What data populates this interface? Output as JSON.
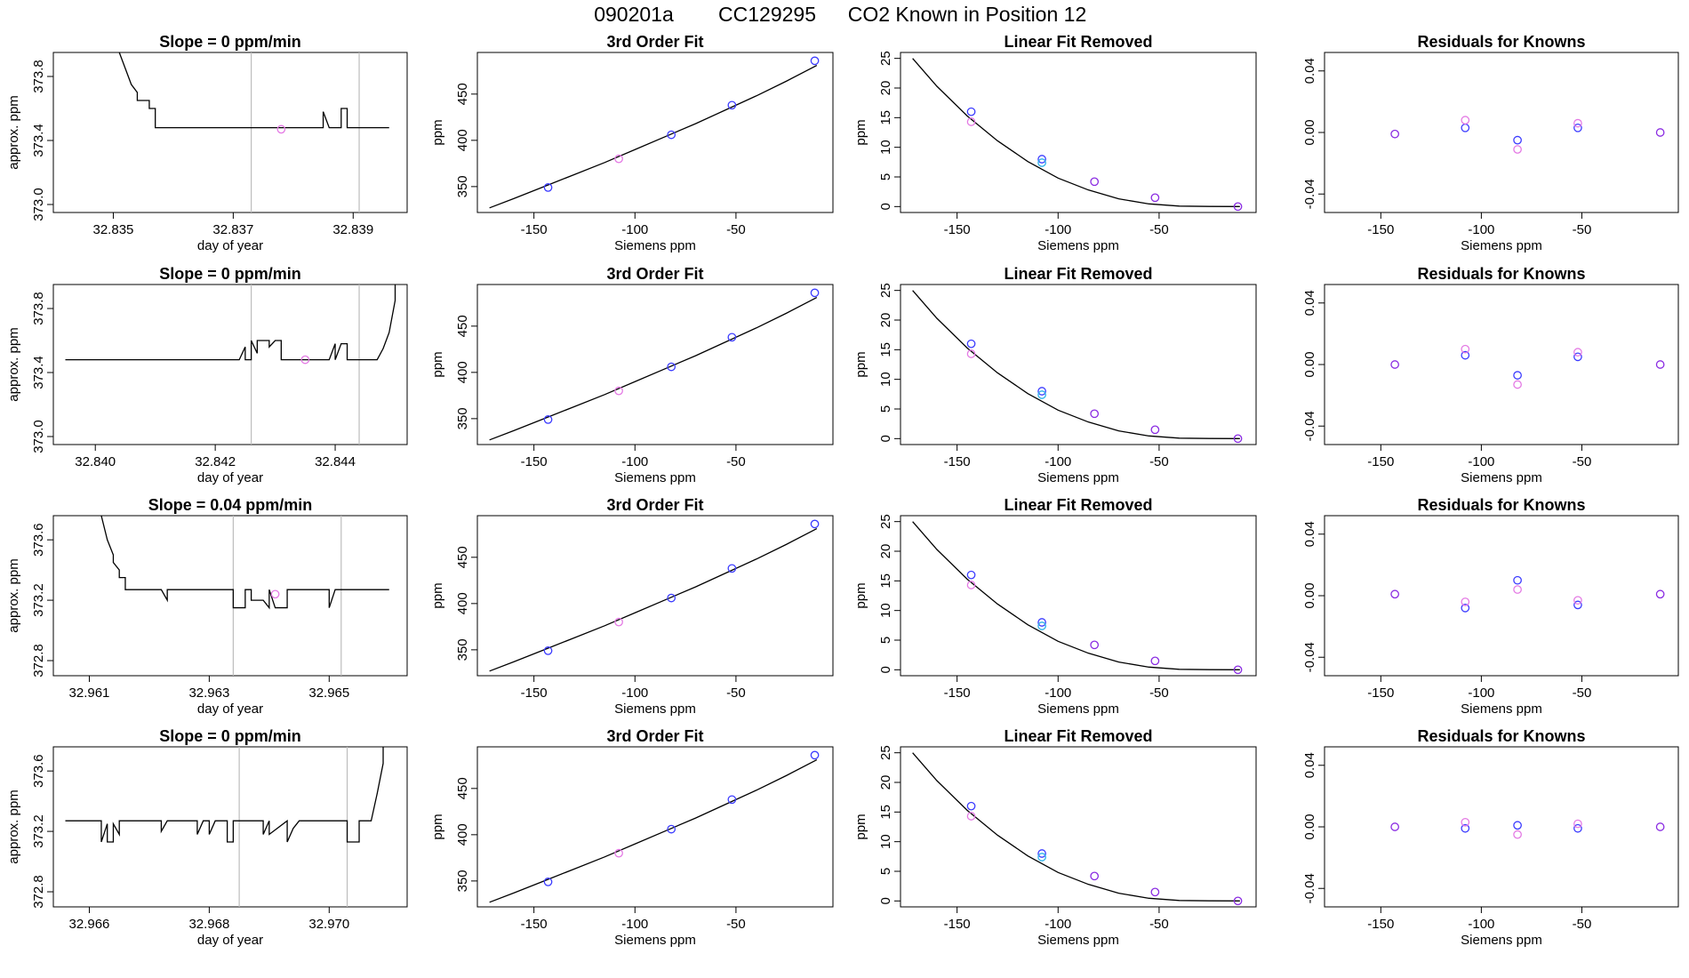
{
  "page": {
    "title_parts": [
      "090201a",
      "CC129295",
      "CO2 Known in Position  12"
    ]
  },
  "colors": {
    "line": "#000000",
    "vline": "#bdbdbd",
    "point_a": "#3b3bff",
    "point_b": "#e47ae4",
    "point_c": "#2ab0e8",
    "point_d": "#8a2be2",
    "frame": "#000000"
  },
  "chart_data": [
    {
      "type": "line",
      "row": 0,
      "col": 0,
      "title": "Slope =  0  ppm/min",
      "xlabel": "day of year",
      "ylabel": "approx. ppm",
      "xlim": [
        32.834,
        32.8399
      ],
      "ylim": [
        372.95,
        373.95
      ],
      "x_ticks": [
        "32.835",
        "32.837",
        "32.839"
      ],
      "x_tick_values": [
        32.835,
        32.837,
        32.839
      ],
      "y_ticks": [
        "373.0",
        "373.4",
        "373.8"
      ],
      "y_tick_values": [
        373.0,
        373.4,
        373.8
      ],
      "vlines": [
        32.8373,
        32.8391
      ],
      "series": [
        {
          "x": [
            32.8351,
            32.8352,
            32.8353,
            32.8354,
            32.8354,
            32.8356,
            32.8356,
            32.8357,
            32.8357,
            32.8358,
            32.8385,
            32.8385,
            32.8386,
            32.8386,
            32.8388,
            32.8388,
            32.8389,
            32.8389,
            32.8396
          ],
          "y": [
            373.95,
            373.85,
            373.75,
            373.7,
            373.65,
            373.65,
            373.6,
            373.6,
            373.48,
            373.48,
            373.48,
            373.58,
            373.48,
            373.48,
            373.48,
            373.6,
            373.6,
            373.48,
            373.48
          ]
        }
      ],
      "point": {
        "x": 32.8378,
        "y": 373.47
      }
    },
    {
      "type": "line",
      "row": 1,
      "col": 0,
      "title": "Slope =  0  ppm/min",
      "xlabel": "day of year",
      "ylabel": "approx. ppm",
      "xlim": [
        32.8393,
        32.8452
      ],
      "ylim": [
        372.95,
        373.95
      ],
      "x_ticks": [
        "32.840",
        "32.842",
        "32.844"
      ],
      "x_tick_values": [
        32.84,
        32.842,
        32.844
      ],
      "y_ticks": [
        "373.0",
        "373.4",
        "373.8"
      ],
      "y_tick_values": [
        373.0,
        373.4,
        373.8
      ],
      "vlines": [
        32.8426,
        32.8444
      ],
      "series": [
        {
          "x": [
            32.8395,
            32.8424,
            32.8425,
            32.8425,
            32.8426,
            32.8426,
            32.8427,
            32.8427,
            32.8428,
            32.8429,
            32.8429,
            32.843,
            32.8431,
            32.8431,
            32.8432,
            32.8434,
            32.8434,
            32.8439,
            32.844,
            32.844,
            32.8441,
            32.8442,
            32.8442,
            32.8442,
            32.8447,
            32.8448,
            32.8449,
            32.845,
            32.845
          ],
          "y": [
            373.48,
            373.48,
            373.56,
            373.48,
            373.48,
            373.6,
            373.52,
            373.6,
            373.6,
            373.6,
            373.56,
            373.6,
            373.6,
            373.48,
            373.48,
            373.48,
            373.48,
            373.48,
            373.58,
            373.48,
            373.58,
            373.58,
            373.48,
            373.48,
            373.48,
            373.55,
            373.65,
            373.85,
            373.95
          ]
        }
      ],
      "point": {
        "x": 32.8435,
        "y": 373.48
      }
    },
    {
      "type": "line",
      "row": 2,
      "col": 0,
      "title": "Slope =  0.04  ppm/min",
      "xlabel": "day of year",
      "ylabel": "approx. ppm",
      "xlim": [
        32.9604,
        32.9663
      ],
      "ylim": [
        372.7,
        373.76
      ],
      "x_ticks": [
        "32.961",
        "32.963",
        "32.965"
      ],
      "x_tick_values": [
        32.961,
        32.963,
        32.965
      ],
      "y_ticks": [
        "372.8",
        "373.2",
        "373.6"
      ],
      "y_tick_values": [
        372.8,
        373.2,
        373.6
      ],
      "vlines": [
        32.9634,
        32.9652
      ],
      "series": [
        {
          "x": [
            32.9612,
            32.9613,
            32.9614,
            32.9614,
            32.9615,
            32.9615,
            32.9616,
            32.9616,
            32.9617,
            32.9622,
            32.9623,
            32.9623,
            32.9634,
            32.9634,
            32.9636,
            32.9636,
            32.9637,
            32.9637,
            32.9639,
            32.964,
            32.964,
            32.9641,
            32.9642,
            32.9643,
            32.9643,
            32.965,
            32.965,
            32.9651,
            32.9651,
            32.966
          ],
          "y": [
            373.76,
            373.6,
            373.5,
            373.45,
            373.4,
            373.35,
            373.35,
            373.27,
            373.27,
            373.27,
            373.2,
            373.27,
            373.27,
            373.15,
            373.15,
            373.27,
            373.27,
            373.2,
            373.2,
            373.15,
            373.27,
            373.15,
            373.15,
            373.15,
            373.27,
            373.27,
            373.15,
            373.27,
            373.27,
            373.27
          ]
        }
      ],
      "point": {
        "x": 32.9641,
        "y": 373.24
      }
    },
    {
      "type": "line",
      "row": 3,
      "col": 0,
      "title": "Slope =  0  ppm/min",
      "xlabel": "day of year",
      "ylabel": "approx. ppm",
      "xlim": [
        32.9654,
        32.9713
      ],
      "ylim": [
        372.7,
        373.76
      ],
      "x_ticks": [
        "32.966",
        "32.968",
        "32.970"
      ],
      "x_tick_values": [
        32.966,
        32.968,
        32.97
      ],
      "y_ticks": [
        "372.8",
        "373.2",
        "373.6"
      ],
      "y_tick_values": [
        372.8,
        373.2,
        373.6
      ],
      "vlines": [
        32.9685,
        32.9703
      ],
      "series": [
        {
          "x": [
            32.9656,
            32.9662,
            32.9662,
            32.9663,
            32.9663,
            32.9664,
            32.9664,
            32.9665,
            32.9665,
            32.9672,
            32.9672,
            32.9673,
            32.9678,
            32.9678,
            32.9679,
            32.968,
            32.968,
            32.9681,
            32.9683,
            32.9683,
            32.9684,
            32.9684,
            32.9689,
            32.9689,
            32.969,
            32.969,
            32.9693,
            32.9693,
            32.9694,
            32.9695,
            32.9703,
            32.9703,
            32.9704,
            32.9705,
            32.9705,
            32.9707,
            32.9708,
            32.9709,
            32.9709
          ],
          "y": [
            373.27,
            373.27,
            373.13,
            373.25,
            373.13,
            373.13,
            373.25,
            373.18,
            373.27,
            373.27,
            373.2,
            373.27,
            373.27,
            373.18,
            373.27,
            373.27,
            373.18,
            373.27,
            373.27,
            373.13,
            373.13,
            373.27,
            373.27,
            373.18,
            373.27,
            373.18,
            373.27,
            373.13,
            373.22,
            373.27,
            373.27,
            373.13,
            373.13,
            373.13,
            373.27,
            373.27,
            373.45,
            373.65,
            373.76
          ]
        }
      ],
      "point": null
    }
  ],
  "fit_panel": {
    "title": "3rd Order Fit",
    "xlabel": "Siemens ppm",
    "ylabel": "ppm",
    "xlim": [
      -178,
      -2
    ],
    "ylim": [
      322,
      495
    ],
    "x_ticks": [
      "-150",
      "-100",
      "-50"
    ],
    "x_tick_values": [
      -150,
      -100,
      -50
    ],
    "y_ticks": [
      "350",
      "400",
      "450"
    ],
    "y_tick_values": [
      350,
      400,
      450
    ],
    "curve": {
      "x": [
        -172,
        -160,
        -145,
        -130,
        -115,
        -100,
        -85,
        -70,
        -55,
        -40,
        -25,
        -10
      ],
      "y": [
        327,
        337,
        350,
        363,
        376,
        390,
        404,
        418,
        433,
        448,
        464,
        481
      ]
    },
    "points": [
      {
        "x": -143,
        "y": 349,
        "c": "a"
      },
      {
        "x": -108,
        "y": 380,
        "c": "b"
      },
      {
        "x": -82,
        "y": 406,
        "c": "a"
      },
      {
        "x": -52,
        "y": 438,
        "c": "a"
      },
      {
        "x": -11,
        "y": 486,
        "c": "a"
      }
    ]
  },
  "linear_panel": {
    "title": "Linear Fit Removed",
    "xlabel": "Siemens ppm",
    "ylabel": "ppm",
    "xlim": [
      -178,
      -2
    ],
    "ylim": [
      -1,
      26
    ],
    "x_ticks": [
      "-150",
      "-100",
      "-50"
    ],
    "x_tick_values": [
      -150,
      -100,
      -50
    ],
    "y_ticks": [
      "0",
      "5",
      "10",
      "15",
      "20",
      "25"
    ],
    "y_tick_values": [
      0,
      5,
      10,
      15,
      20,
      25
    ],
    "curve": {
      "x": [
        -172,
        -160,
        -145,
        -130,
        -115,
        -100,
        -85,
        -70,
        -55,
        -40,
        -25,
        -10
      ],
      "y": [
        25.0,
        20.3,
        15.3,
        11.1,
        7.6,
        4.8,
        2.8,
        1.3,
        0.45,
        0.08,
        0.02,
        0.0
      ]
    },
    "points": [
      {
        "x": -143,
        "y": 16.0,
        "c": "a"
      },
      {
        "x": -143,
        "y": 14.3,
        "c": "b"
      },
      {
        "x": -108,
        "y": 8.0,
        "c": "a"
      },
      {
        "x": -108,
        "y": 7.4,
        "c": "c"
      },
      {
        "x": -82,
        "y": 4.2,
        "c": "d"
      },
      {
        "x": -52,
        "y": 1.5,
        "c": "d"
      },
      {
        "x": -11,
        "y": 0.0,
        "c": "d"
      }
    ]
  },
  "residual_panel": {
    "title": "Residuals for Knowns",
    "xlabel": "Siemens ppm",
    "ylabel": "",
    "xlim": [
      -178,
      -2
    ],
    "ylim": [
      -0.052,
      0.052
    ],
    "x_ticks": [
      "-150",
      "-100",
      "-50"
    ],
    "x_tick_values": [
      -150,
      -100,
      -50
    ],
    "y_ticks": [
      "-0.04",
      "0.00",
      "0.04"
    ],
    "y_tick_values": [
      -0.04,
      0.0,
      0.04
    ],
    "rows": [
      [
        {
          "x": -143,
          "y": -0.001,
          "c": "d"
        },
        {
          "x": -108,
          "y": 0.003,
          "c": "a"
        },
        {
          "x": -108,
          "y": 0.008,
          "c": "b"
        },
        {
          "x": -82,
          "y": -0.005,
          "c": "a"
        },
        {
          "x": -82,
          "y": -0.011,
          "c": "b"
        },
        {
          "x": -52,
          "y": 0.003,
          "c": "a"
        },
        {
          "x": -52,
          "y": 0.006,
          "c": "b"
        },
        {
          "x": -11,
          "y": 0.0,
          "c": "d"
        }
      ],
      [
        {
          "x": -143,
          "y": 0.0,
          "c": "d"
        },
        {
          "x": -108,
          "y": 0.006,
          "c": "a"
        },
        {
          "x": -108,
          "y": 0.01,
          "c": "b"
        },
        {
          "x": -82,
          "y": -0.007,
          "c": "a"
        },
        {
          "x": -82,
          "y": -0.013,
          "c": "b"
        },
        {
          "x": -52,
          "y": 0.005,
          "c": "a"
        },
        {
          "x": -52,
          "y": 0.008,
          "c": "b"
        },
        {
          "x": -11,
          "y": 0.0,
          "c": "d"
        }
      ],
      [
        {
          "x": -143,
          "y": 0.001,
          "c": "d"
        },
        {
          "x": -108,
          "y": -0.008,
          "c": "a"
        },
        {
          "x": -108,
          "y": -0.004,
          "c": "b"
        },
        {
          "x": -82,
          "y": 0.01,
          "c": "a"
        },
        {
          "x": -82,
          "y": 0.004,
          "c": "b"
        },
        {
          "x": -52,
          "y": -0.006,
          "c": "a"
        },
        {
          "x": -52,
          "y": -0.003,
          "c": "b"
        },
        {
          "x": -11,
          "y": 0.001,
          "c": "d"
        }
      ],
      [
        {
          "x": -143,
          "y": 0.0,
          "c": "d"
        },
        {
          "x": -108,
          "y": -0.001,
          "c": "a"
        },
        {
          "x": -108,
          "y": 0.003,
          "c": "b"
        },
        {
          "x": -82,
          "y": 0.001,
          "c": "a"
        },
        {
          "x": -82,
          "y": -0.005,
          "c": "b"
        },
        {
          "x": -52,
          "y": -0.001,
          "c": "a"
        },
        {
          "x": -52,
          "y": 0.002,
          "c": "b"
        },
        {
          "x": -11,
          "y": 0.0,
          "c": "d"
        }
      ]
    ]
  }
}
